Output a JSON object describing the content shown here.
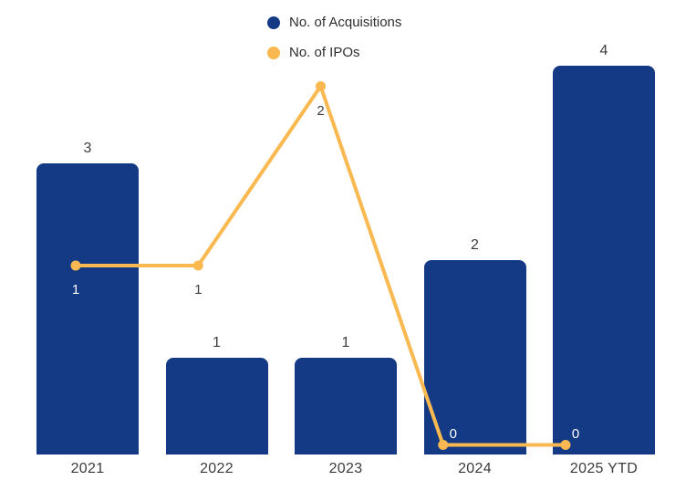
{
  "legend": {
    "items": [
      {
        "label": "No. of Acquisitions",
        "color": "#143a85",
        "marker": "circle"
      },
      {
        "label": "No. of IPOs",
        "color": "#fab950",
        "marker": "circle"
      }
    ]
  },
  "chart_data": {
    "type": "bar+line",
    "categories": [
      "2021",
      "2022",
      "2023",
      "2024",
      "2025 YTD"
    ],
    "series": [
      {
        "name": "No. of Acquisitions",
        "type": "bar",
        "color": "#143a85",
        "values": [
          3,
          1,
          1,
          2,
          4
        ]
      },
      {
        "name": "No. of IPOs",
        "type": "line",
        "color": "#fab950",
        "values": [
          1,
          1,
          2,
          0,
          0
        ]
      }
    ],
    "bar_value_label_color": "#3c3c3c",
    "category_label_color": "#3c3c3c",
    "line_label_colors": [
      "#ffffff",
      "#3c3c3c",
      "#3c3c3c",
      "#ffffff",
      "#ffffff"
    ],
    "line_label_placement": [
      "below",
      "below",
      "below",
      "above-right",
      "above-right"
    ],
    "ylim_bars": [
      0,
      4
    ],
    "ylim_line": [
      0,
      2
    ],
    "grid": false,
    "axes_shown": "none",
    "legend_position": "top-center",
    "background_color": "#ffffff"
  }
}
